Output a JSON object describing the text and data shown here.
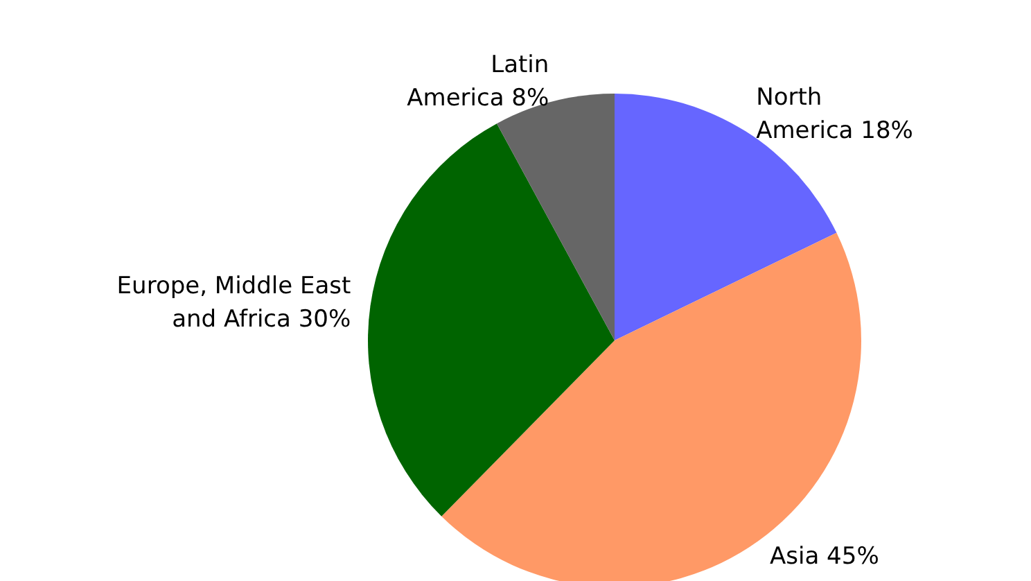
{
  "chart_data": {
    "type": "pie",
    "categories": [
      "North America",
      "Asia",
      "Europe, Middle East and Africa",
      "Latin America"
    ],
    "values": [
      18,
      45,
      30,
      8
    ],
    "value_labels": [
      "18%",
      "45%",
      "30%",
      "8%"
    ],
    "colors": [
      "#6666ff",
      "#ff9966",
      "#006400",
      "#666666"
    ]
  }
}
